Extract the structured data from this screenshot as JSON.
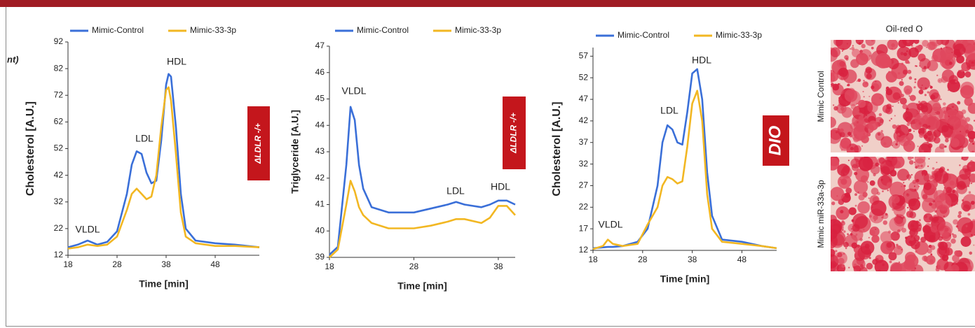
{
  "fragment": "nt)",
  "image_panel": {
    "title": "Oil-red O",
    "labels": [
      "Mimic Control",
      "Mimic miR-33a-3p"
    ]
  },
  "chart_data": [
    {
      "type": "line",
      "x_label": "Time [min]",
      "y_label": "Cholesterol [A.U.]",
      "side_label": "ΔLDLR -/+",
      "annotations": [
        "VLDL",
        "LDL",
        "HDL"
      ],
      "legend": "top",
      "x": [
        18,
        20,
        22,
        24,
        26,
        28,
        30,
        31,
        32,
        33,
        34,
        35,
        36,
        37,
        38,
        38.5,
        39,
        40,
        41,
        42,
        44,
        48,
        52,
        57
      ],
      "series": [
        {
          "name": "Mimic-Control",
          "color": "#3a6fd8",
          "values": [
            15,
            16,
            17.5,
            16,
            17,
            21,
            35,
            46,
            51,
            50,
            43,
            39,
            40,
            55,
            76,
            80,
            79,
            60,
            35,
            22,
            17.5,
            16.5,
            16,
            15
          ]
        },
        {
          "name": "Mimic-33-3p",
          "color": "#f2b722",
          "values": [
            14.5,
            15,
            16,
            15.5,
            16,
            19,
            29,
            35,
            37,
            35,
            33,
            34,
            42,
            60,
            74,
            75,
            70,
            50,
            28,
            19,
            16.5,
            15.5,
            15.5,
            15
          ]
        }
      ],
      "xlim": [
        18,
        57
      ],
      "ylim": [
        12,
        92
      ],
      "xticks": [
        18,
        28,
        38,
        48
      ],
      "yticks": [
        12,
        22,
        32,
        42,
        52,
        62,
        72,
        82,
        92
      ]
    },
    {
      "type": "line",
      "x_label": "Time [min]",
      "y_label": "Triglyceride [A.U.]",
      "side_label": "ΔLDLR -/+",
      "annotations": [
        "VLDL",
        "LDL",
        "HDL"
      ],
      "legend": "top",
      "x": [
        18,
        19,
        20,
        20.5,
        21,
        21.5,
        22,
        23,
        25,
        28,
        30,
        32,
        33,
        34,
        36,
        37,
        38,
        39,
        40
      ],
      "series": [
        {
          "name": "Mimic-Control",
          "color": "#3a6fd8",
          "values": [
            39.1,
            39.4,
            42.5,
            44.7,
            44.2,
            42.5,
            41.6,
            40.9,
            40.7,
            40.7,
            40.85,
            41.0,
            41.1,
            41.0,
            40.9,
            41.0,
            41.15,
            41.15,
            41.0
          ]
        },
        {
          "name": "Mimic-33-3p",
          "color": "#f2b722",
          "values": [
            39.0,
            39.3,
            41.0,
            41.9,
            41.5,
            40.9,
            40.6,
            40.3,
            40.1,
            40.1,
            40.2,
            40.35,
            40.45,
            40.45,
            40.3,
            40.5,
            40.95,
            40.95,
            40.6
          ]
        }
      ],
      "xlim": [
        18,
        40
      ],
      "ylim": [
        39,
        47
      ],
      "xticks": [
        18,
        28,
        38
      ],
      "yticks": [
        39,
        40,
        41,
        42,
        43,
        44,
        45,
        46,
        47
      ]
    },
    {
      "type": "line",
      "x_label": "Time [min]",
      "y_label": "Cholesterol [A.U.]",
      "side_label": "DIO",
      "annotations": [
        "VLDL",
        "LDL",
        "HDL"
      ],
      "legend": "top",
      "x": [
        18,
        20,
        21,
        22,
        24,
        27,
        29,
        31,
        32,
        33,
        34,
        35,
        36,
        37,
        38,
        39,
        40,
        41,
        42,
        44,
        48,
        52,
        55
      ],
      "series": [
        {
          "name": "Mimic-Control",
          "color": "#3a6fd8",
          "values": [
            12.5,
            12.7,
            12.8,
            12.8,
            13,
            14,
            17,
            27,
            37,
            41,
            40,
            37,
            36.5,
            44,
            53,
            54,
            47,
            30,
            20,
            14.5,
            14,
            13,
            12.5
          ]
        },
        {
          "name": "Mimic-33-3p",
          "color": "#f2b722",
          "values": [
            12.3,
            13,
            14.5,
            13.5,
            13,
            13.5,
            18,
            22,
            27,
            29,
            28.5,
            27.5,
            28,
            36,
            46,
            49,
            42,
            25,
            17,
            14,
            13.5,
            13,
            12.5
          ]
        }
      ],
      "xlim": [
        18,
        55
      ],
      "ylim": [
        12,
        59
      ],
      "xticks": [
        18,
        28,
        38,
        48
      ],
      "yticks": [
        12,
        17,
        22,
        27,
        32,
        37,
        42,
        47,
        52,
        57
      ]
    }
  ]
}
